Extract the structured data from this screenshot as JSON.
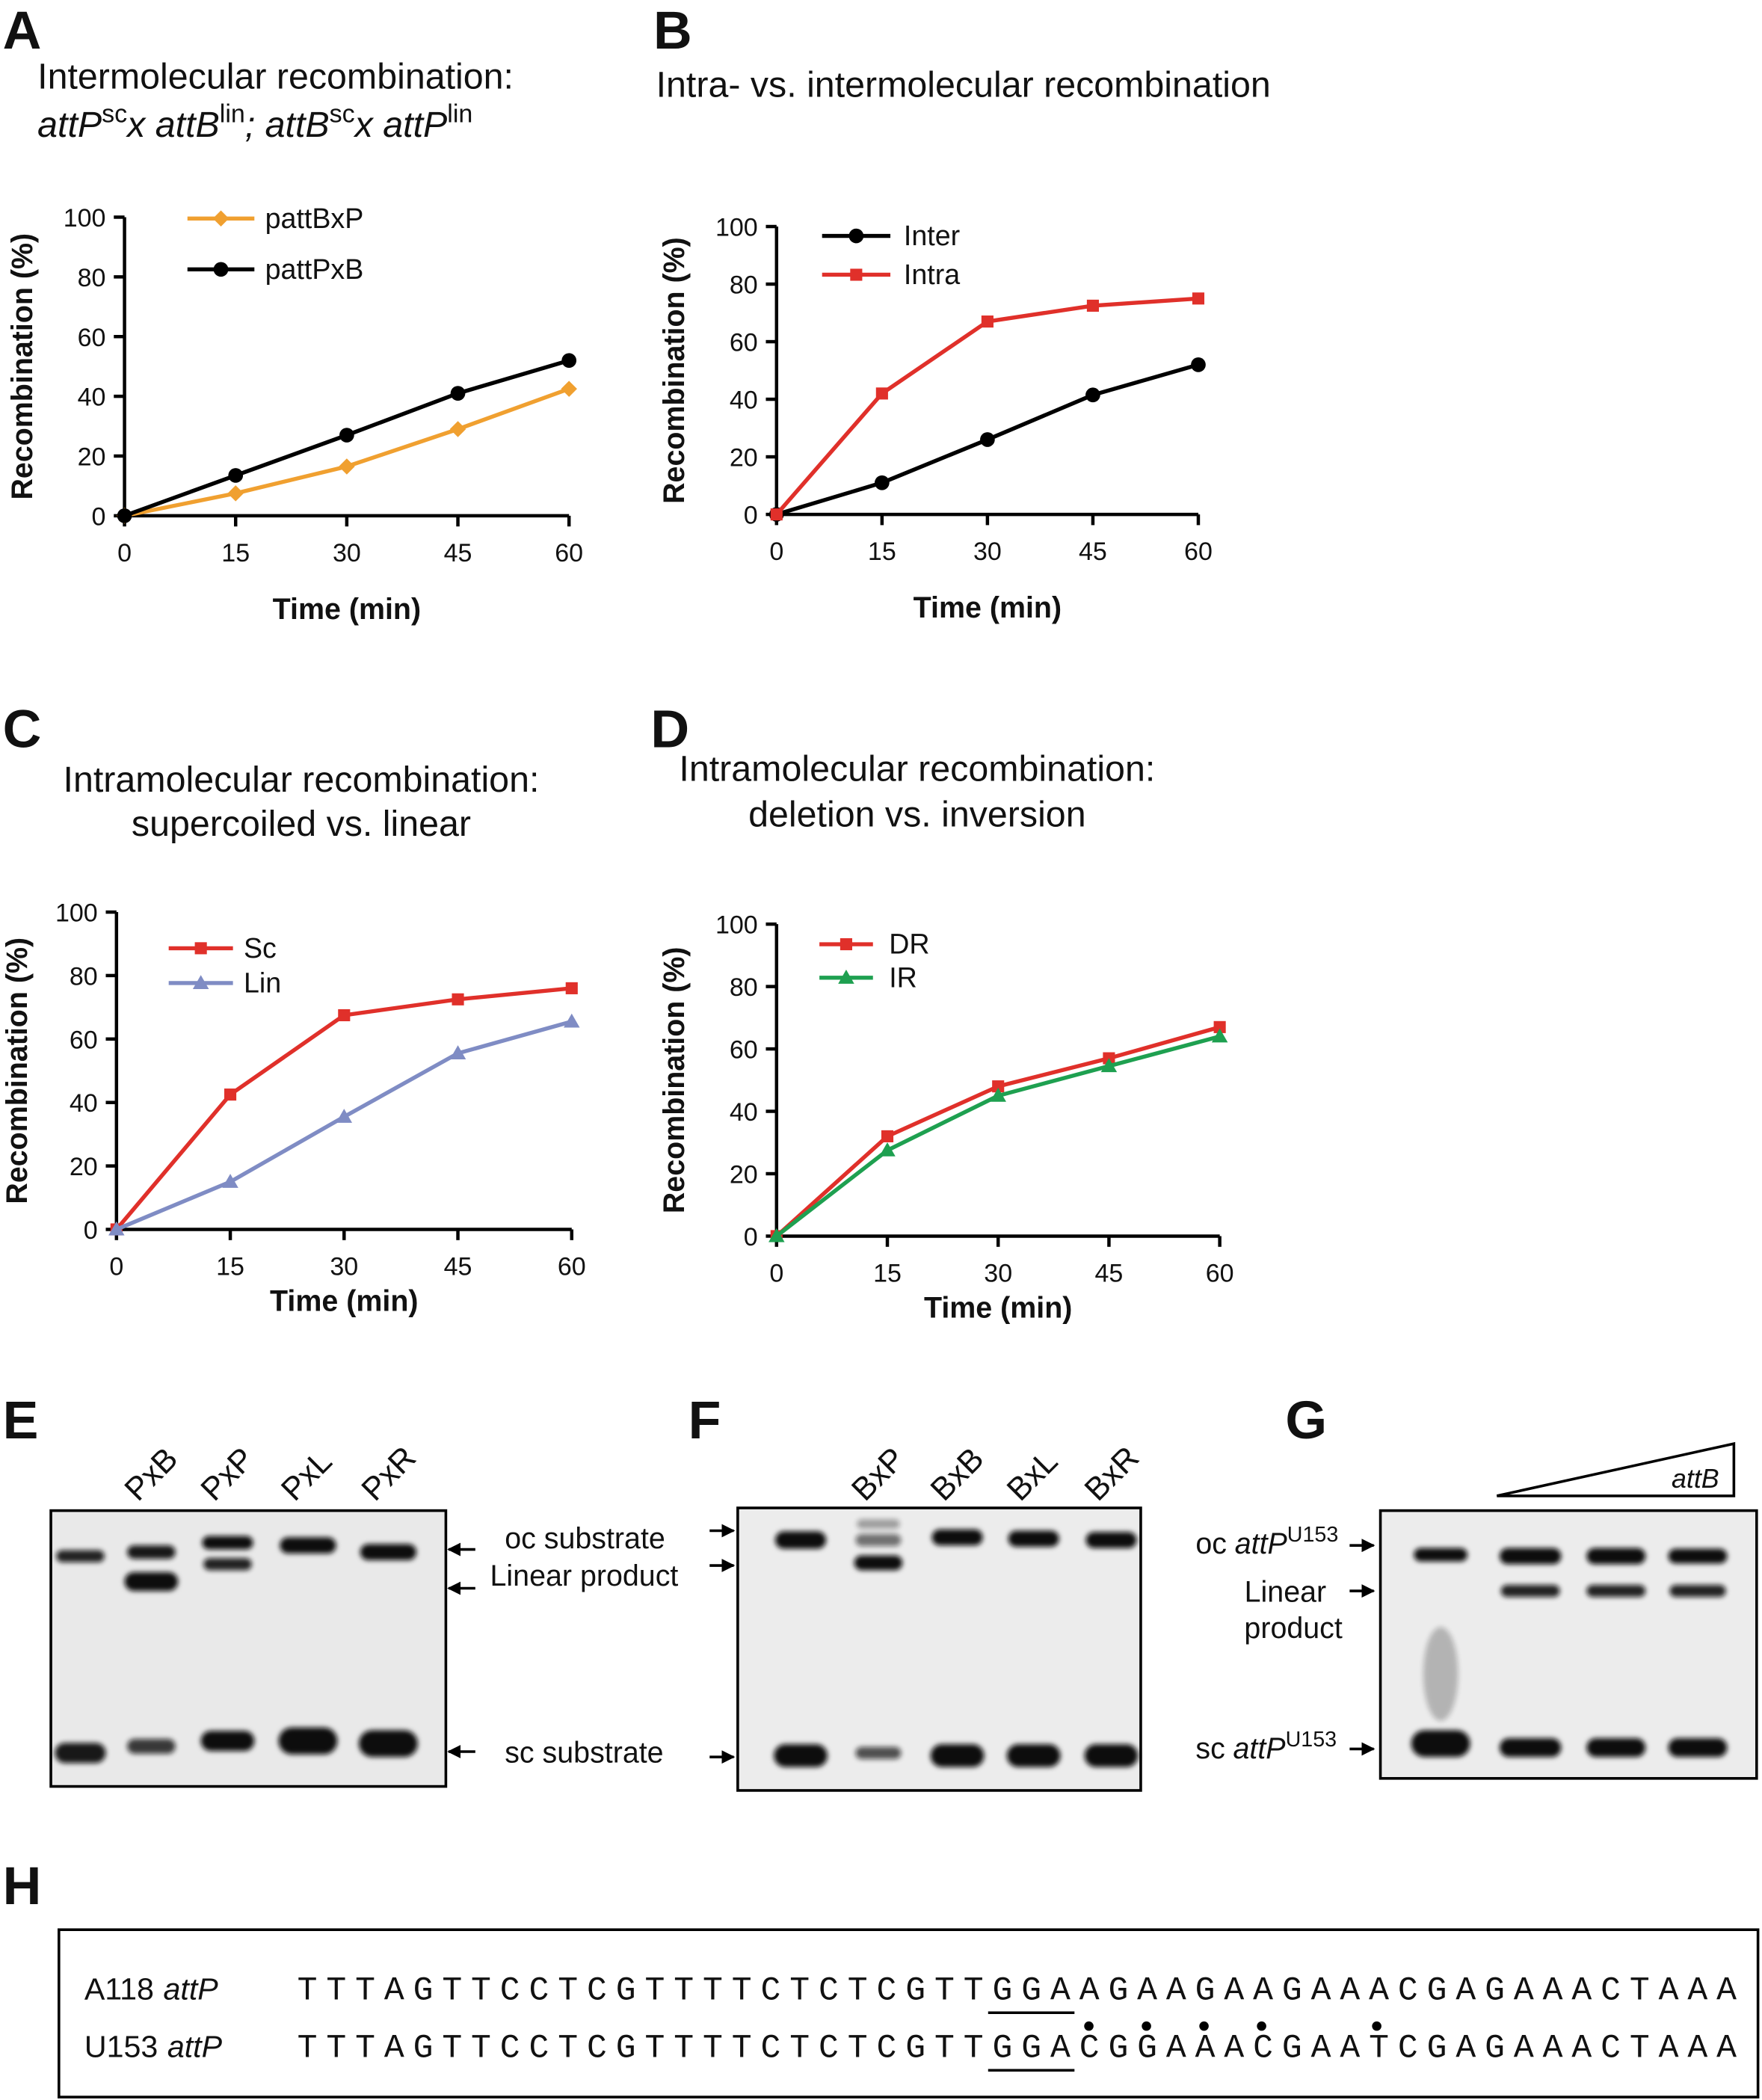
{
  "chart_data": [
    {
      "type": "line",
      "panel": "A",
      "title": "Intermolecular recombination:",
      "subtitle_parts": [
        "attP",
        "sc",
        "x attB",
        "lin",
        "; attB",
        "sc",
        "x attP",
        "lin"
      ],
      "x_label": "Time (min)",
      "y_label": "Recombination (%)",
      "x": [
        0,
        15,
        30,
        45,
        60
      ],
      "xlim": [
        0,
        60
      ],
      "xticks": [
        0,
        15,
        30,
        45,
        60
      ],
      "ylim": [
        0,
        100
      ],
      "yticks": [
        0,
        20,
        40,
        60,
        80,
        100
      ],
      "series": [
        {
          "name": "pattBxP",
          "color": "#f0a030",
          "marker": "diamond",
          "values": [
            0,
            7.5,
            16.5,
            29,
            42.5
          ]
        },
        {
          "name": "pattPxB",
          "color": "#000000",
          "marker": "circle",
          "values": [
            0,
            13.5,
            27,
            41,
            52
          ]
        }
      ]
    },
    {
      "type": "line",
      "panel": "B",
      "title": "Intra- vs. intermolecular recombination",
      "x_label": "Time (min)",
      "y_label": "Recombination (%)",
      "x": [
        0,
        15,
        30,
        45,
        60
      ],
      "xlim": [
        0,
        60
      ],
      "xticks": [
        0,
        15,
        30,
        45,
        60
      ],
      "ylim": [
        0,
        100
      ],
      "yticks": [
        0,
        20,
        40,
        60,
        80,
        100
      ],
      "series": [
        {
          "name": "Inter",
          "color": "#000000",
          "marker": "circle",
          "values": [
            0,
            11,
            26,
            41.5,
            52
          ]
        },
        {
          "name": "Intra",
          "color": "#e0302a",
          "marker": "square",
          "values": [
            0,
            42,
            67,
            72.5,
            75
          ]
        }
      ]
    },
    {
      "type": "line",
      "panel": "C",
      "title": "Intramolecular recombination:",
      "subtitle": "supercoiled  vs. linear",
      "x_label": "Time (min)",
      "y_label": "Recombination (%)",
      "x": [
        0,
        15,
        30,
        45,
        60
      ],
      "xlim": [
        0,
        60
      ],
      "xticks": [
        0,
        15,
        30,
        45,
        60
      ],
      "ylim": [
        0,
        100
      ],
      "yticks": [
        0,
        20,
        40,
        60,
        80,
        100
      ],
      "series": [
        {
          "name": "Sc",
          "color": "#e0302a",
          "marker": "square",
          "values": [
            0,
            42.5,
            67.5,
            72.5,
            76
          ]
        },
        {
          "name": "Lin",
          "color": "#7f8cc4",
          "marker": "triangle",
          "values": [
            0,
            15,
            35.5,
            55.5,
            65.5
          ]
        }
      ]
    },
    {
      "type": "line",
      "panel": "D",
      "title": "Intramolecular recombination:",
      "subtitle": "deletion vs. inversion",
      "x_label": "Time (min)",
      "y_label": "Recombination (%)",
      "x": [
        0,
        15,
        30,
        45,
        60
      ],
      "xlim": [
        0,
        60
      ],
      "xticks": [
        0,
        15,
        30,
        45,
        60
      ],
      "ylim": [
        0,
        100
      ],
      "yticks": [
        0,
        20,
        40,
        60,
        80,
        100
      ],
      "series": [
        {
          "name": "DR",
          "color": "#e0302a",
          "marker": "square",
          "values": [
            0,
            32,
            48,
            57,
            67
          ]
        },
        {
          "name": "IR",
          "color": "#1ea050",
          "marker": "triangle",
          "values": [
            0,
            27.5,
            45,
            54.5,
            64
          ]
        }
      ]
    }
  ],
  "gels": [
    {
      "panel": "E",
      "lanes": [
        "PxB",
        "PxP",
        "PxL",
        "PxR"
      ],
      "labels": [
        "oc substrate",
        "Linear product",
        "sc substrate"
      ]
    },
    {
      "panel": "F",
      "lanes": [
        "BxP",
        "BxB",
        "BxL",
        "BxR"
      ]
    },
    {
      "panel": "G",
      "wedge": "attB",
      "labels": [
        [
          "oc",
          "attP",
          "U153"
        ],
        [
          "Linear",
          "product"
        ],
        [
          "sc",
          "attP",
          "U153"
        ]
      ]
    }
  ],
  "sequence": {
    "panel": "H",
    "rows": [
      {
        "name": "A118",
        "site": "attP",
        "seq": "TTTAGTTCCTCGTTTTCTCTCGTTGGAAGAAGAAGAAACGAGAAACTAAA"
      },
      {
        "name": "U153",
        "site": "attP",
        "seq": "TTTAGTTCCTCGTTTTCTCTCGTTGGACGGAAACGAATCGAGAAACTAAA"
      }
    ]
  }
}
